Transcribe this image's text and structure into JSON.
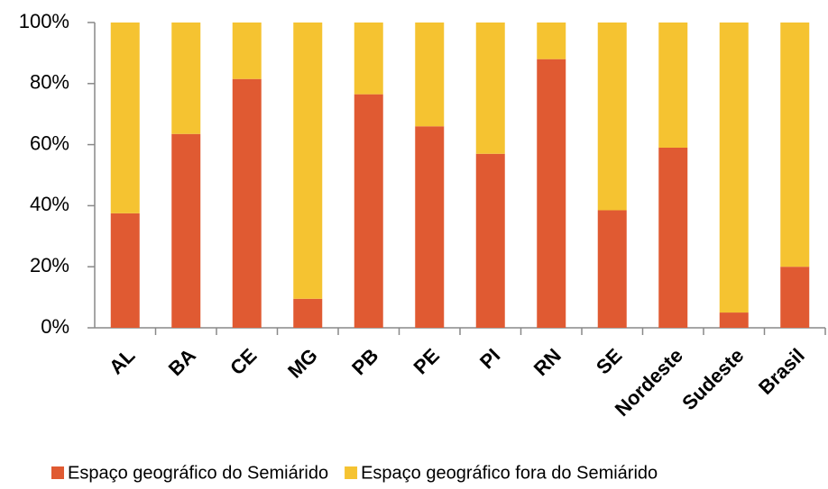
{
  "chart_data": {
    "type": "stacked_bar",
    "categories": [
      "AL",
      "BA",
      "CE",
      "MG",
      "PB",
      "PE",
      "PI",
      "RN",
      "SE",
      "Nordeste",
      "Sudeste",
      "Brasil"
    ],
    "series": [
      {
        "name": "Espaço geográfico do Semiárido",
        "color": "#e05a32",
        "values": [
          37.5,
          63.5,
          81.5,
          9.5,
          76.5,
          66,
          57,
          88,
          38.5,
          59,
          5,
          20
        ]
      },
      {
        "name": "Espaço geográfico fora do Semiárido",
        "color": "#f5c331",
        "values": [
          62.5,
          36.5,
          18.5,
          90.5,
          23.5,
          34,
          43,
          12,
          61.5,
          41,
          95,
          80
        ]
      }
    ],
    "ylim": [
      0,
      100
    ],
    "yticks": [
      {
        "value": 0,
        "label": "0%"
      },
      {
        "value": 20,
        "label": "20%"
      },
      {
        "value": 40,
        "label": "40%"
      },
      {
        "value": 60,
        "label": "60%"
      },
      {
        "value": 80,
        "label": "80%"
      },
      {
        "value": 100,
        "label": "100%"
      }
    ],
    "legend": "bottom"
  }
}
